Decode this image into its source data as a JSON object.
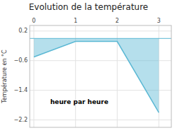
{
  "chart_data": {
    "type": "area",
    "title": "Evolution de la température",
    "xlabel": "heure par heure",
    "ylabel": "Température en °C",
    "x": [
      0,
      1,
      2,
      3
    ],
    "values": [
      -0.5,
      -0.08,
      -0.08,
      -2.0
    ],
    "baseline": 0.0,
    "color": "#5bb8d4",
    "xlim": [
      -0.1,
      3.3
    ],
    "ylim": [
      -2.4,
      0.35
    ],
    "xticks": [
      0,
      1,
      2,
      3
    ],
    "yticks": [
      0.2,
      {
        "value": -0.6,
        "label": "−0.6"
      },
      {
        "value": -1.4,
        "label": "−1.4"
      },
      {
        "value": -2.2,
        "label": "−2.2"
      }
    ],
    "grid": true
  }
}
